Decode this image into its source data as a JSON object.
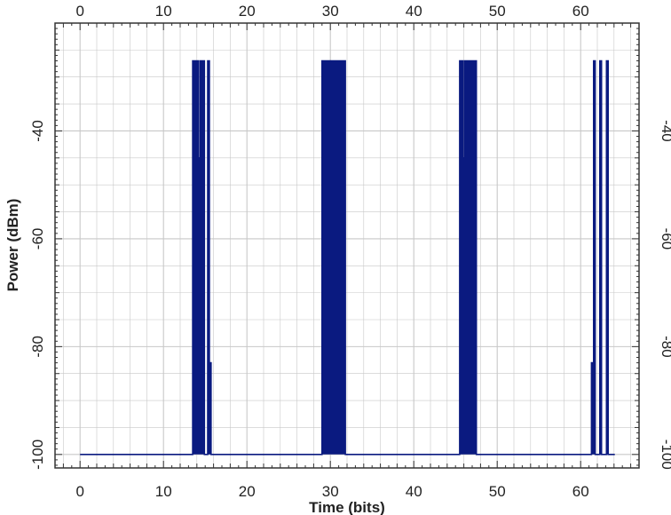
{
  "chart_data": {
    "type": "line",
    "title": "",
    "xlabel": "Time (bits)",
    "ylabel": "Power (dBm)",
    "xlim": [
      -3,
      67
    ],
    "ylim": [
      -102.5,
      -20
    ],
    "x_ticks": [
      0,
      10,
      20,
      30,
      40,
      50,
      60
    ],
    "y_ticks": [
      -100,
      -80,
      -60,
      -40
    ],
    "grid": true,
    "colors": {
      "series": "#0a1a80",
      "grid": "#c8c8c8",
      "frame": "#333333"
    },
    "series": [
      {
        "name": "",
        "baseline": -100,
        "pulse_top": -27,
        "points": [
          [
            0,
            -100
          ],
          [
            13.5,
            -100
          ],
          [
            13.5,
            -27
          ],
          [
            14.2,
            -27
          ],
          [
            14.2,
            -45
          ],
          [
            14.4,
            -45
          ],
          [
            14.4,
            -27
          ],
          [
            14.9,
            -27
          ],
          [
            14.9,
            -100
          ],
          [
            15.3,
            -100
          ],
          [
            15.3,
            -27
          ],
          [
            15.5,
            -27
          ],
          [
            15.5,
            -83
          ],
          [
            15.7,
            -83
          ],
          [
            15.7,
            -100
          ],
          [
            29,
            -100
          ],
          [
            29,
            -27
          ],
          [
            31.8,
            -27
          ],
          [
            31.8,
            -100
          ],
          [
            45.5,
            -100
          ],
          [
            45.5,
            -27
          ],
          [
            45.9,
            -27
          ],
          [
            45.9,
            -45
          ],
          [
            46.1,
            -45
          ],
          [
            46.1,
            -27
          ],
          [
            47.5,
            -27
          ],
          [
            47.5,
            -100
          ],
          [
            61.3,
            -100
          ],
          [
            61.3,
            -83
          ],
          [
            61.55,
            -83
          ],
          [
            61.55,
            -27
          ],
          [
            61.75,
            -27
          ],
          [
            61.75,
            -100
          ],
          [
            62.3,
            -100
          ],
          [
            62.3,
            -27
          ],
          [
            62.5,
            -27
          ],
          [
            62.5,
            -100
          ],
          [
            63.1,
            -100
          ],
          [
            63.1,
            -27
          ],
          [
            63.3,
            -27
          ],
          [
            63.3,
            -100
          ],
          [
            64.1,
            -100
          ]
        ]
      }
    ]
  }
}
